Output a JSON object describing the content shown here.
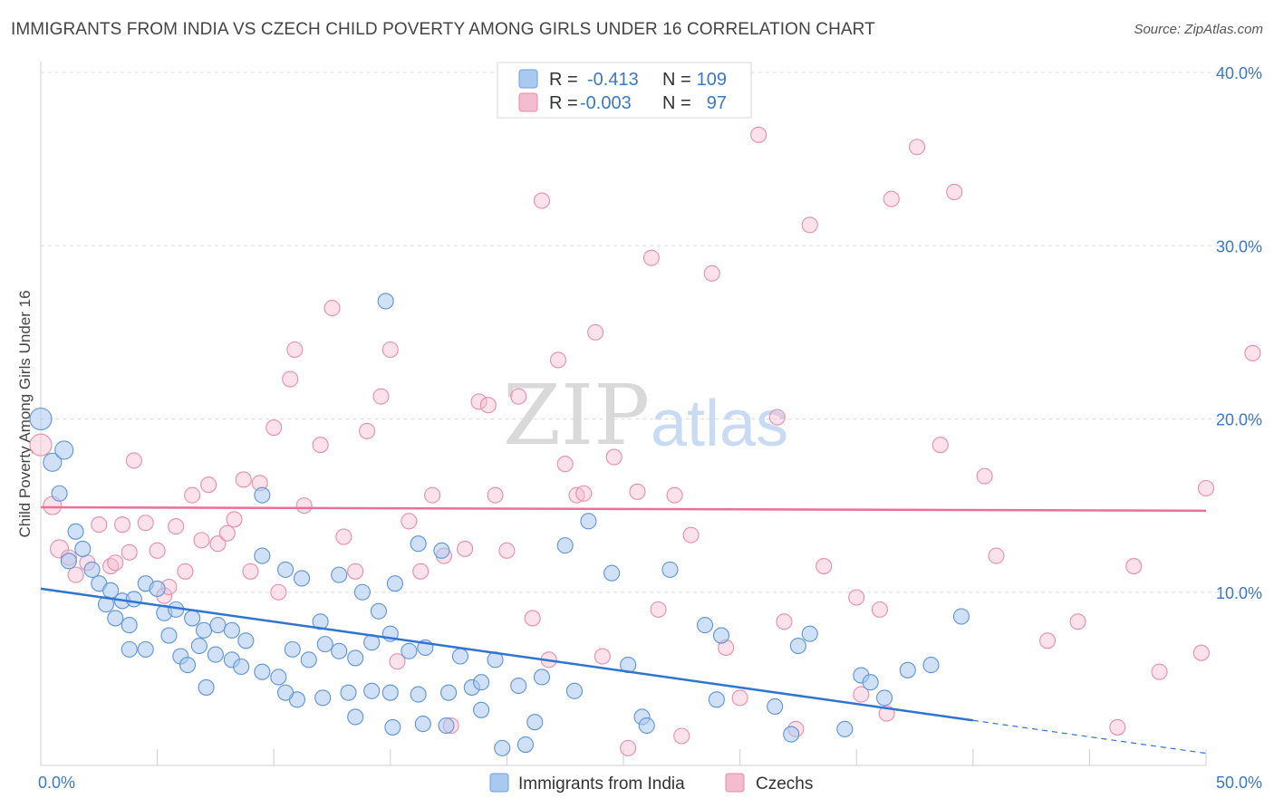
{
  "title": "IMMIGRANTS FROM INDIA VS CZECH CHILD POVERTY AMONG GIRLS UNDER 16 CORRELATION CHART",
  "source": "Source: ZipAtlas.com",
  "watermark": {
    "zip": "ZIP",
    "atlas": "atlas"
  },
  "colors": {
    "blue": "#3a7bd5",
    "blue_fill": "#aac9f0",
    "pink": "#e8709a",
    "pink_fill": "#f4bcd0",
    "tick": "#3b78c8"
  },
  "legend": {
    "rows": [
      {
        "r_label": "R =",
        "r_value": "-0.413",
        "n_label": "N =",
        "n_value": "109"
      },
      {
        "r_label": "R =",
        "r_value": "-0.003",
        "n_label": "N =",
        "n_value": "97"
      }
    ]
  },
  "chart_data": {
    "type": "scatter",
    "ylabel": "Child Poverty Among Girls Under 16",
    "xlim": [
      0,
      50
    ],
    "ylim": [
      0,
      40
    ],
    "x_tick_labels": [
      "0.0%",
      "50.0%"
    ],
    "y_ticks": [
      10,
      20,
      30,
      40
    ],
    "y_tick_labels": [
      "10.0%",
      "20.0%",
      "30.0%",
      "40.0%"
    ],
    "series": [
      {
        "name": "Immigrants from India",
        "r": -0.413,
        "n": 109,
        "trend": {
          "x0": 0,
          "y0": 10.2,
          "x1": 40,
          "y1": 2.6,
          "dash_to_x": 50,
          "dash_to_y": 0.7
        },
        "points": [
          [
            0,
            20
          ],
          [
            0.5,
            17.5
          ],
          [
            1,
            18.2
          ],
          [
            0.8,
            15.7
          ],
          [
            1.5,
            13.5
          ],
          [
            1.8,
            12.5
          ],
          [
            1.2,
            11.8
          ],
          [
            2.2,
            11.3
          ],
          [
            2.5,
            10.5
          ],
          [
            3,
            10.1
          ],
          [
            3.5,
            9.5
          ],
          [
            2.8,
            9.3
          ],
          [
            4,
            9.6
          ],
          [
            4.5,
            10.5
          ],
          [
            5,
            10.2
          ],
          [
            3.2,
            8.5
          ],
          [
            3.8,
            8.1
          ],
          [
            5.3,
            8.8
          ],
          [
            5.8,
            9
          ],
          [
            6.5,
            8.5
          ],
          [
            7,
            7.8
          ],
          [
            7.6,
            8.1
          ],
          [
            8.2,
            7.8
          ],
          [
            8.8,
            7.2
          ],
          [
            4.5,
            6.7
          ],
          [
            5.5,
            7.5
          ],
          [
            6,
            6.3
          ],
          [
            6.8,
            6.9
          ],
          [
            7.5,
            6.4
          ],
          [
            8.2,
            6.1
          ],
          [
            3.8,
            6.7
          ],
          [
            6.3,
            5.8
          ],
          [
            7.1,
            4.5
          ],
          [
            8.6,
            5.7
          ],
          [
            9.5,
            5.4
          ],
          [
            10.2,
            5.1
          ],
          [
            10.8,
            6.7
          ],
          [
            11.5,
            6.1
          ],
          [
            12.2,
            7
          ],
          [
            12.8,
            6.6
          ],
          [
            13.5,
            6.2
          ],
          [
            14.2,
            7.1
          ],
          [
            15,
            7.6
          ],
          [
            15.8,
            6.6
          ],
          [
            16.5,
            6.8
          ],
          [
            9.5,
            12.1
          ],
          [
            10.5,
            11.3
          ],
          [
            11.2,
            10.8
          ],
          [
            12,
            8.3
          ],
          [
            12.8,
            11
          ],
          [
            13.8,
            10
          ],
          [
            14.5,
            8.9
          ],
          [
            15.2,
            10.5
          ],
          [
            16.2,
            12.8
          ],
          [
            17.2,
            12.4
          ],
          [
            18,
            6.3
          ],
          [
            19.5,
            6.1
          ],
          [
            18.5,
            4.5
          ],
          [
            17.5,
            4.2
          ],
          [
            16.2,
            4.1
          ],
          [
            15,
            4.2
          ],
          [
            14.2,
            4.3
          ],
          [
            13.2,
            4.2
          ],
          [
            12.1,
            3.9
          ],
          [
            11,
            3.8
          ],
          [
            10.5,
            4.2
          ],
          [
            9.5,
            15.6
          ],
          [
            14.8,
            26.8
          ],
          [
            17.4,
            2.3
          ],
          [
            16.4,
            2.4
          ],
          [
            15.1,
            2.2
          ],
          [
            13.5,
            2.8
          ],
          [
            18.9,
            3.2
          ],
          [
            19.8,
            1
          ],
          [
            20.8,
            1.2
          ],
          [
            21.2,
            2.5
          ],
          [
            21.5,
            5.1
          ],
          [
            20.5,
            4.6
          ],
          [
            18.9,
            4.8
          ],
          [
            22.5,
            12.7
          ],
          [
            23.5,
            14.1
          ],
          [
            22.9,
            4.3
          ],
          [
            24.5,
            11.1
          ],
          [
            25.2,
            5.8
          ],
          [
            25.8,
            2.8
          ],
          [
            26,
            2.3
          ],
          [
            27,
            11.3
          ],
          [
            28.5,
            8.1
          ],
          [
            29.2,
            7.5
          ],
          [
            29,
            3.8
          ],
          [
            31.5,
            3.4
          ],
          [
            32.5,
            6.9
          ],
          [
            32.2,
            1.8
          ],
          [
            33,
            7.6
          ],
          [
            34.5,
            2.1
          ],
          [
            35.2,
            5.2
          ],
          [
            35.6,
            4.8
          ],
          [
            36.2,
            3.9
          ],
          [
            37.2,
            5.5
          ],
          [
            38.2,
            5.8
          ],
          [
            39.5,
            8.6
          ]
        ]
      },
      {
        "name": "Czechs",
        "r": -0.003,
        "n": 97,
        "trend": {
          "x0": 0,
          "y0": 14.9,
          "x1": 50,
          "y1": 14.7
        },
        "points": [
          [
            0,
            18.5
          ],
          [
            0.5,
            15
          ],
          [
            0.8,
            12.5
          ],
          [
            1.2,
            12
          ],
          [
            1.5,
            11
          ],
          [
            2,
            11.7
          ],
          [
            2.5,
            13.9
          ],
          [
            3,
            11.5
          ],
          [
            3.2,
            11.7
          ],
          [
            3.5,
            13.9
          ],
          [
            3.8,
            12.3
          ],
          [
            4,
            17.6
          ],
          [
            4.5,
            14
          ],
          [
            5,
            12.4
          ],
          [
            5.3,
            9.8
          ],
          [
            5.5,
            10.3
          ],
          [
            5.8,
            13.8
          ],
          [
            6.2,
            11.2
          ],
          [
            6.5,
            15.6
          ],
          [
            6.9,
            13
          ],
          [
            7.2,
            16.2
          ],
          [
            7.6,
            12.8
          ],
          [
            8,
            13.4
          ],
          [
            8.3,
            14.2
          ],
          [
            8.7,
            16.5
          ],
          [
            9,
            11.2
          ],
          [
            9.4,
            16.3
          ],
          [
            10,
            19.5
          ],
          [
            10.2,
            10
          ],
          [
            10.7,
            22.3
          ],
          [
            10.9,
            24
          ],
          [
            11.3,
            15
          ],
          [
            12,
            18.5
          ],
          [
            12.5,
            26.4
          ],
          [
            13,
            13.2
          ],
          [
            13.5,
            11.2
          ],
          [
            14,
            19.3
          ],
          [
            14.6,
            21.3
          ],
          [
            15,
            24
          ],
          [
            15.3,
            6
          ],
          [
            15.8,
            14.1
          ],
          [
            16.3,
            11.2
          ],
          [
            16.8,
            15.6
          ],
          [
            17.3,
            12.1
          ],
          [
            17.6,
            2.3
          ],
          [
            18.2,
            12.5
          ],
          [
            18.8,
            21
          ],
          [
            19.2,
            20.8
          ],
          [
            19.5,
            15.6
          ],
          [
            20,
            12.4
          ],
          [
            20.5,
            21.3
          ],
          [
            21.1,
            8.5
          ],
          [
            21.5,
            32.6
          ],
          [
            21.8,
            6.1
          ],
          [
            22.2,
            23.4
          ],
          [
            22.5,
            17.4
          ],
          [
            23,
            15.6
          ],
          [
            23.3,
            15.7
          ],
          [
            23.8,
            25
          ],
          [
            24.1,
            6.3
          ],
          [
            24.6,
            17.8
          ],
          [
            25.2,
            1
          ],
          [
            25.6,
            15.8
          ],
          [
            26.2,
            29.3
          ],
          [
            26.5,
            9
          ],
          [
            27.2,
            15.6
          ],
          [
            27.5,
            1.7
          ],
          [
            27.9,
            13.3
          ],
          [
            28.8,
            28.4
          ],
          [
            29.4,
            6.8
          ],
          [
            30,
            3.9
          ],
          [
            30.8,
            36.4
          ],
          [
            31.6,
            20.1
          ],
          [
            31.9,
            8.3
          ],
          [
            32.4,
            2.1
          ],
          [
            33,
            31.2
          ],
          [
            33.6,
            11.5
          ],
          [
            35,
            9.7
          ],
          [
            35.2,
            4.1
          ],
          [
            36,
            9
          ],
          [
            36.3,
            3
          ],
          [
            36.5,
            32.7
          ],
          [
            37.6,
            35.7
          ],
          [
            38.6,
            18.5
          ],
          [
            39.2,
            33.1
          ],
          [
            40.5,
            16.7
          ],
          [
            41,
            12.1
          ],
          [
            43.2,
            7.2
          ],
          [
            44.5,
            8.3
          ],
          [
            46.2,
            2.2
          ],
          [
            46.9,
            11.5
          ],
          [
            48,
            5.4
          ],
          [
            49.8,
            6.5
          ],
          [
            50,
            16
          ],
          [
            52,
            23.8
          ]
        ]
      }
    ]
  }
}
